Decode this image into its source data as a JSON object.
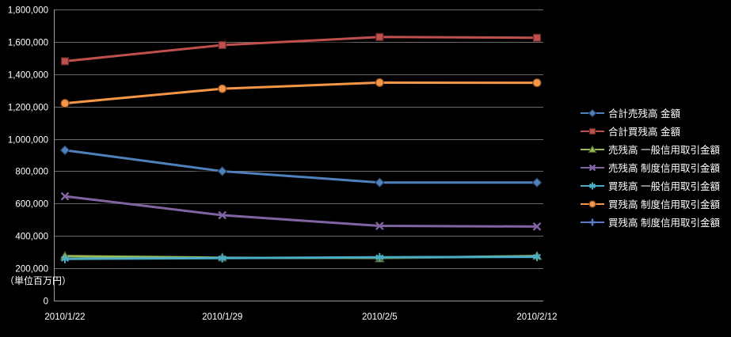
{
  "chart_data": {
    "type": "line",
    "title": "",
    "xlabel": "",
    "ylabel": "",
    "unit_note": "（単位百万円）",
    "categories": [
      "2010/1/22",
      "2010/1/29",
      "2010/2/5",
      "2010/2/12"
    ],
    "series": [
      {
        "name": "合計売残高 金額",
        "color": "#4F81BD",
        "marker": "diamond",
        "values": [
          930000,
          800000,
          730000,
          730000
        ]
      },
      {
        "name": "合計買残高 金額",
        "color": "#C0504D",
        "marker": "square",
        "values": [
          1480000,
          1580000,
          1630000,
          1625000
        ]
      },
      {
        "name": "売残高 一般信用取引金額",
        "color": "#9BBB59",
        "marker": "triangle",
        "values": [
          275000,
          265000,
          262000,
          276000
        ]
      },
      {
        "name": "売残高 制度信用取引金額",
        "color": "#8064A2",
        "marker": "x",
        "values": [
          645000,
          528000,
          462000,
          458000
        ]
      },
      {
        "name": "買残高 一般信用取引金額",
        "color": "#4BACC6",
        "marker": "asterisk",
        "values": [
          258000,
          263000,
          268000,
          271000
        ]
      },
      {
        "name": "買残高 制度信用取引金額",
        "color": "#F79646",
        "marker": "circle",
        "values": [
          1220000,
          1310000,
          1348000,
          1347000
        ]
      },
      {
        "name": "買残高 制度信用取引金額",
        "color": "#5B7AC7",
        "marker": "plus",
        "values": []
      }
    ],
    "ylim": [
      0,
      1800000
    ],
    "ytick_step": 200000,
    "ytick_labels": [
      "0",
      "200,000",
      "400,000",
      "600,000",
      "800,000",
      "1,000,000",
      "1,200,000",
      "1,400,000",
      "1,600,000",
      "1,800,000"
    ],
    "grid": true,
    "legend_position": "right",
    "background": "#000000",
    "grid_color": "#6B6B6B",
    "axis_color": "#9C9C9C",
    "text_color": "#FFFFFF"
  }
}
